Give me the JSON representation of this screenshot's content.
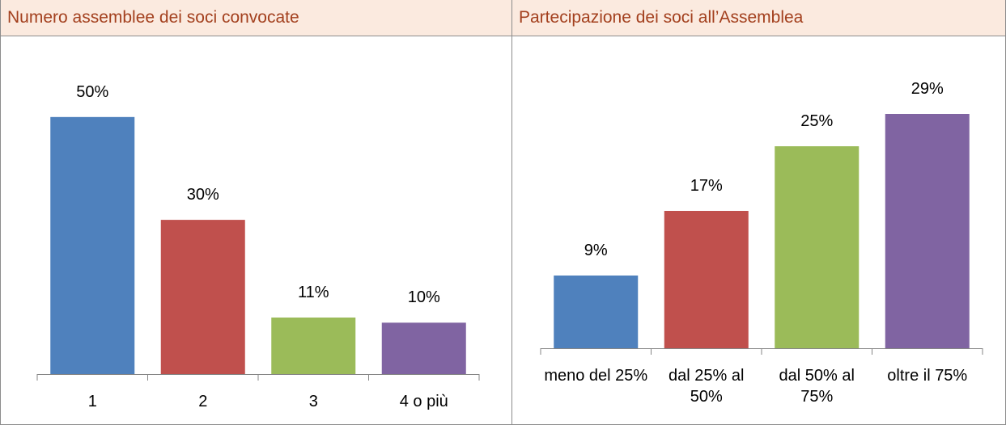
{
  "chart_data": [
    {
      "type": "bar",
      "title": "Numero assemblee dei soci convocate",
      "categories": [
        "1",
        "2",
        "3",
        "4 o più"
      ],
      "values": [
        50,
        30,
        11,
        10
      ],
      "value_labels": [
        "50%",
        "30%",
        "11%",
        "10%"
      ],
      "colors": [
        "#4f81bd",
        "#c0504d",
        "#9bbb59",
        "#8064a2"
      ],
      "ylim": [
        0,
        55
      ]
    },
    {
      "type": "bar",
      "title": "Partecipazione dei soci all’Assemblea",
      "categories": [
        "meno del 25%",
        "dal 25% al 50%",
        "dal 50% al 75%",
        "oltre il 75%"
      ],
      "values": [
        9,
        17,
        25,
        29
      ],
      "value_labels": [
        "9%",
        "17%",
        "25%",
        "29%"
      ],
      "colors": [
        "#4f81bd",
        "#c0504d",
        "#9bbb59",
        "#8064a2"
      ],
      "ylim": [
        0,
        35
      ]
    }
  ]
}
